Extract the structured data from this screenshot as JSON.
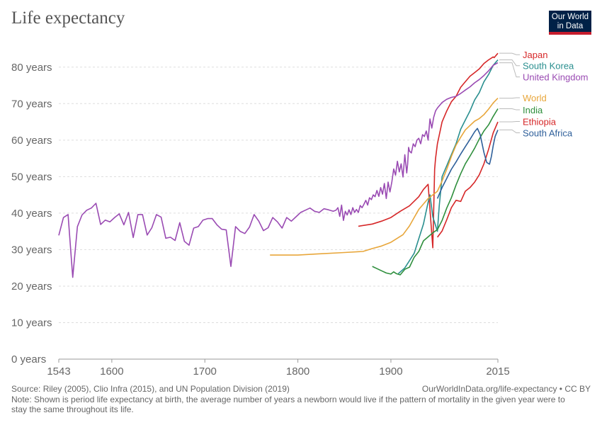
{
  "header": {
    "title": "Life expectancy",
    "logo_line1": "Our World",
    "logo_line2": "in Data"
  },
  "footer": {
    "source": "Source: Riley (2005), Clio Infra (2015), and UN Population Division (2019)",
    "link": "OurWorldInData.org/life-expectancy • CC BY",
    "note": "Note: Shown is period life expectancy at birth, the average number of years a newborn would live if the pattern of mortality in the given year were to stay the same throughout its life."
  },
  "chart_data": {
    "type": "line",
    "title": "Life expectancy",
    "xlim": [
      1543,
      2015
    ],
    "ylim": [
      0,
      85
    ],
    "grid": true,
    "legend": "right-end labels",
    "x_ticks": [
      {
        "value": 1543,
        "label": "1543"
      },
      {
        "value": 1600,
        "label": "1600"
      },
      {
        "value": 1700,
        "label": "1700"
      },
      {
        "value": 1800,
        "label": "1800"
      },
      {
        "value": 1900,
        "label": "1900"
      },
      {
        "value": 2015,
        "label": "2015"
      }
    ],
    "y_ticks": [
      {
        "value": 0,
        "label": "0 years"
      },
      {
        "value": 10,
        "label": "10 years"
      },
      {
        "value": 20,
        "label": "20 years"
      },
      {
        "value": 30,
        "label": "30 years"
      },
      {
        "value": 40,
        "label": "40 years"
      },
      {
        "value": 50,
        "label": "50 years"
      },
      {
        "value": 60,
        "label": "60 years"
      },
      {
        "value": 70,
        "label": "70 years"
      },
      {
        "value": 80,
        "label": "80 years"
      }
    ],
    "series": [
      {
        "name": "Japan",
        "color": "#d62728",
        "label_y": 83.4,
        "x": [
          1865,
          1880,
          1890,
          1900,
          1910,
          1920,
          1930,
          1935,
          1940,
          1945,
          1947,
          1948,
          1950,
          1955,
          1960,
          1965,
          1970,
          1975,
          1980,
          1985,
          1990,
          1995,
          2000,
          2005,
          2010,
          2011,
          2015
        ],
        "y": [
          36.4,
          37,
          37.8,
          38.8,
          40.5,
          42,
          44.5,
          46.5,
          47.9,
          30.5,
          52,
          55,
          59,
          65,
          68,
          70.5,
          72,
          74.5,
          76,
          77.5,
          78.5,
          79.5,
          81,
          82,
          82.8,
          82.6,
          83.8
        ]
      },
      {
        "name": "South Korea",
        "color": "#2a8f8f",
        "label_y": 80.4,
        "x": [
          1908,
          1915,
          1920,
          1925,
          1930,
          1935,
          1940,
          1942,
          1945,
          1950,
          1952,
          1955,
          1960,
          1965,
          1970,
          1975,
          1980,
          1985,
          1990,
          1995,
          2000,
          2005,
          2010,
          2015
        ],
        "y": [
          23.4,
          25,
          27,
          29,
          33,
          37,
          43,
          45,
          39,
          35,
          42,
          50,
          53,
          56,
          59,
          63,
          65.5,
          68,
          71,
          73,
          76,
          78,
          80.5,
          82
        ]
      },
      {
        "name": "United Kingdom",
        "color": "#9a4bb3",
        "label_y": 77.3,
        "x": [
          1543,
          1548,
          1553,
          1558,
          1563,
          1568,
          1573,
          1578,
          1583,
          1588,
          1593,
          1598,
          1603,
          1608,
          1613,
          1618,
          1623,
          1628,
          1633,
          1638,
          1643,
          1648,
          1653,
          1658,
          1663,
          1668,
          1673,
          1678,
          1683,
          1688,
          1693,
          1698,
          1703,
          1708,
          1713,
          1718,
          1723,
          1728,
          1733,
          1738,
          1743,
          1748,
          1753,
          1758,
          1763,
          1768,
          1773,
          1778,
          1783,
          1788,
          1793,
          1798,
          1803,
          1808,
          1813,
          1818,
          1823,
          1828,
          1833,
          1838,
          1841,
          1843,
          1845,
          1847,
          1849,
          1851,
          1853,
          1855,
          1857,
          1859,
          1861,
          1863,
          1865,
          1867,
          1869,
          1871,
          1873,
          1875,
          1877,
          1879,
          1881,
          1883,
          1885,
          1887,
          1889,
          1891,
          1893,
          1895,
          1897,
          1899,
          1901,
          1903,
          1905,
          1907,
          1909,
          1911,
          1913,
          1915,
          1917,
          1918,
          1919,
          1920,
          1922,
          1924,
          1926,
          1928,
          1930,
          1932,
          1934,
          1936,
          1938,
          1940,
          1942,
          1944,
          1946,
          1948,
          1950,
          1955,
          1960,
          1965,
          1970,
          1975,
          1980,
          1985,
          1990,
          1995,
          2000,
          2005,
          2010,
          2015
        ],
        "y": [
          33.9,
          38.8,
          39.6,
          22.4,
          36.3,
          39.5,
          40.8,
          41.4,
          42.7,
          36.9,
          38.1,
          37.6,
          38.8,
          39.8,
          36.8,
          40.2,
          33.3,
          39.6,
          39.6,
          34.0,
          36.0,
          39.6,
          38.9,
          33.1,
          33.4,
          32.5,
          37.4,
          32.3,
          31.2,
          35.9,
          36.3,
          38.1,
          38.5,
          38.5,
          36.8,
          35.6,
          35.4,
          25.4,
          36.3,
          35.0,
          34.4,
          36.2,
          39.6,
          37.8,
          35.2,
          36.0,
          38.8,
          37.6,
          35.9,
          38.8,
          37.8,
          39.0,
          40.2,
          40.8,
          41.4,
          40.5,
          40.2,
          41.2,
          40.9,
          40.5,
          40.8,
          41.5,
          39.1,
          42.2,
          38.0,
          40.5,
          39.5,
          40.9,
          39.6,
          41.5,
          40.2,
          41.0,
          40.2,
          42.1,
          41.5,
          42.4,
          43.5,
          42.2,
          44.2,
          43.7,
          45.0,
          44.5,
          46.2,
          44.6,
          47.0,
          45.2,
          48.1,
          44.0,
          48.5,
          45.8,
          48.6,
          52.1,
          50.4,
          54.2,
          51.3,
          53.5,
          49.9,
          56.0,
          51.0,
          53.5,
          58.0,
          57.0,
          56.5,
          59.0,
          58.2,
          60.0,
          60.5,
          59.0,
          61.5,
          61.0,
          62.5,
          60.0,
          65.8,
          63.3,
          66.3,
          68.0,
          68.8,
          70.3,
          71.2,
          71.7,
          72.0,
          72.8,
          73.7,
          74.6,
          75.7,
          76.6,
          77.7,
          79.0,
          80.5,
          81.2
        ]
      },
      {
        "name": "World",
        "color": "#e8a63a",
        "label_y": 71.6,
        "x": [
          1770,
          1800,
          1820,
          1850,
          1870,
          1880,
          1890,
          1900,
          1913,
          1920,
          1925,
          1930,
          1935,
          1940,
          1945,
          1950,
          1955,
          1960,
          1965,
          1970,
          1975,
          1980,
          1985,
          1990,
          1995,
          2000,
          2005,
          2010,
          2015
        ],
        "y": [
          28.5,
          28.5,
          28.8,
          29.2,
          29.5,
          30.3,
          31.0,
          32.0,
          34.1,
          36.5,
          38.8,
          41.0,
          42.5,
          44.0,
          45.0,
          46.0,
          48.8,
          52.0,
          55.5,
          58.6,
          60.8,
          62.8,
          64.0,
          65.2,
          65.9,
          67.0,
          68.5,
          70.2,
          71.5
        ]
      },
      {
        "name": "India",
        "color": "#2f8f3d",
        "label_y": 68.3,
        "x": [
          1880,
          1885,
          1890,
          1895,
          1900,
          1903,
          1906,
          1910,
          1915,
          1920,
          1925,
          1930,
          1935,
          1940,
          1945,
          1950,
          1955,
          1960,
          1965,
          1970,
          1975,
          1980,
          1985,
          1990,
          1995,
          2000,
          2005,
          2010,
          2015
        ],
        "y": [
          25.4,
          24.8,
          24.2,
          23.6,
          23.3,
          23.9,
          23.4,
          23.1,
          24.6,
          25.2,
          27.9,
          29.5,
          32.4,
          33.5,
          34.6,
          35.5,
          38.0,
          41.4,
          44.2,
          47.7,
          50.8,
          53.5,
          55.6,
          57.8,
          60.3,
          62.5,
          64.2,
          66.5,
          68.6
        ]
      },
      {
        "name": "Ethiopia",
        "color": "#d62728",
        "label_y": 65.1,
        "x": [
          1950,
          1955,
          1960,
          1965,
          1970,
          1975,
          1980,
          1985,
          1990,
          1995,
          2000,
          2005,
          2010,
          2015
        ],
        "y": [
          33.4,
          35.1,
          38.2,
          41.5,
          43.5,
          43.2,
          46.0,
          47.0,
          48.5,
          50.5,
          53.5,
          57.5,
          62.0,
          65.0
        ]
      },
      {
        "name": "South Africa",
        "color": "#2e5f9a",
        "label_y": 62.0,
        "x": [
          1950,
          1955,
          1960,
          1965,
          1970,
          1975,
          1980,
          1985,
          1990,
          1993,
          1996,
          2000,
          2003,
          2006,
          2008,
          2010,
          2012,
          2015
        ],
        "y": [
          44.0,
          47.0,
          49.5,
          52.0,
          54.0,
          56.2,
          58.2,
          60.2,
          62.3,
          63.2,
          61.5,
          56.6,
          53.9,
          53.4,
          55.5,
          58.5,
          61.0,
          62.8
        ]
      }
    ]
  }
}
